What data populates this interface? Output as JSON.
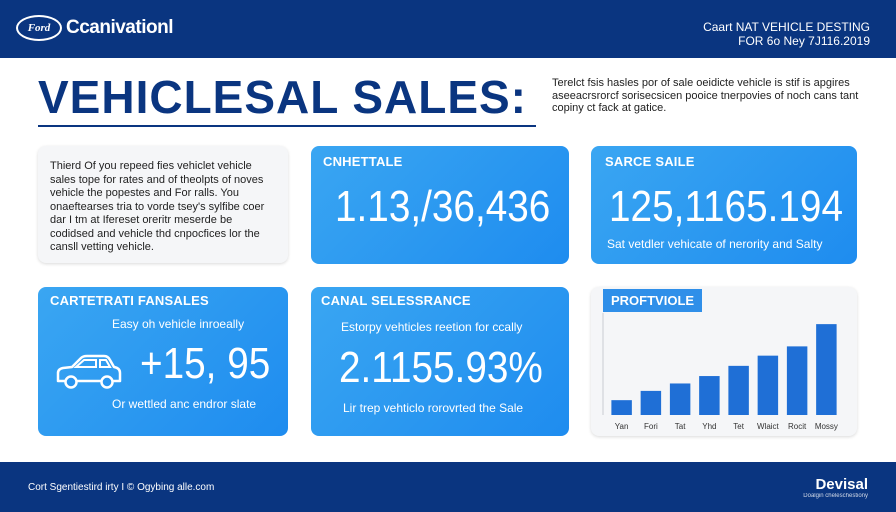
{
  "header": {
    "logo_mark": "Ford",
    "brand": "Ccanivationl",
    "right_line1": "Caart NAT VEHICLE DESTING",
    "right_line2": "FOR 6o Ney 7J116.2019"
  },
  "title": "VEHICLESAL SALES:",
  "intro": "Terelct fsis hasles por of sale oeidicte vehicle is stif is apgires aseeacrsrorcf sorisecsicen pooice tnerpovies of noch cans tant copiny ct fack at gatice.",
  "text_card": {
    "body": "Thierd Of you repeed fies vehiclet vehicle sales tope for rates and of theolpts of noves vehicle the popestes and For ralls. You onaeftearses tria to vorde tsey's sylfibe coer dar I tm at Ifereset oreritr meserde be codidsed and vehicle thd cnpocfices lor the cansll vetting vehicle."
  },
  "cards": {
    "top_middle": {
      "label": "CNHETTALE",
      "value": "1.13,/36,436"
    },
    "top_right": {
      "label": "SARCE SAILE",
      "value": "125,1165.194",
      "caption": "Sat vetdler vehicate of nerority and Salty"
    },
    "bottom_left": {
      "label": "CARTETRATI FANSALES",
      "caption_top": "Easy oh vehicle inroeally",
      "value": "+15, 95",
      "caption_bottom": "Or wettled anc endror slate",
      "icon": "car-icon"
    },
    "bottom_middle": {
      "label": "CANAL SELESSRANCE",
      "caption_top": "Estorpy vehticles reetion for ccally",
      "value": "2.1155.93%",
      "caption_bottom": "Lir trep vehticlo rorovrted the Sale"
    }
  },
  "chart": {
    "tag": "PROFTVIOLE"
  },
  "chart_data": {
    "type": "bar",
    "title": "PROFTVIOLE",
    "categories": [
      "Yan",
      "Fori",
      "Tat",
      "Yhd",
      "Tet",
      "Wlaict",
      "Rocit",
      "Mossy"
    ],
    "values": [
      16,
      26,
      34,
      42,
      53,
      64,
      74,
      98
    ],
    "ylim": [
      0,
      110
    ],
    "grid": false,
    "color": "#1f6fd6"
  },
  "footer": {
    "left": "Cort Sgentiestird irty I © Ogybing alle.com",
    "brand": "Devisal",
    "brand_sub": "Doalgin cheleschestiony"
  }
}
